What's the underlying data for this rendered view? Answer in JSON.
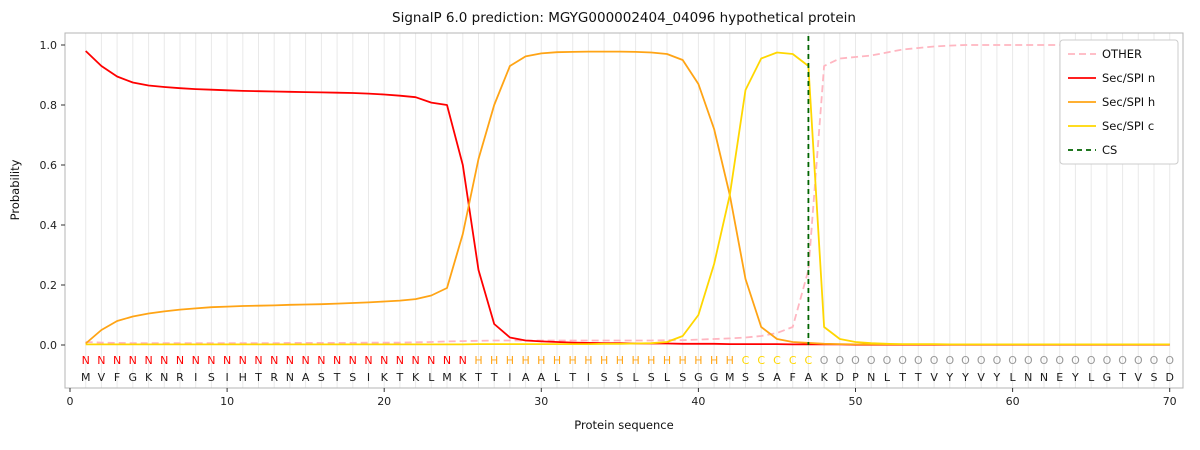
{
  "figure": {
    "title": "SignalP 6.0 prediction: MGYG000002404_04096 hypothetical protein",
    "xlabel": "Protein sequence",
    "ylabel": "Probability"
  },
  "chart_data": {
    "type": "line",
    "title": "SignalP 6.0 prediction: MGYG000002404_04096 hypothetical protein",
    "xlabel": "Protein sequence",
    "ylabel": "Probability",
    "xlim": [
      0,
      71
    ],
    "ylim": [
      0,
      1.05
    ],
    "xticks": [
      0,
      10,
      20,
      30,
      40,
      50,
      60,
      70
    ],
    "yticks": [
      0.0,
      0.2,
      0.4,
      0.6,
      0.8,
      1.0
    ],
    "grid": "vertical-per-residue",
    "legend_position": "upper-right",
    "residues": "MVFGKNRISIHTRNASTSIKTKLMKTTIAALTISSLSLSGGMSSAFAKDPNLTTVYYVYLNNEYLGTVSD",
    "region_labels": "NNNNNNNNNNNNNNNNNNNNNNNNNHHHHHHHHHHHHHHHHHCCCCCOOOOOOOOOOOOOOOOOOOOOOO",
    "region_colors": {
      "N": "#ff0000",
      "H": "#ffa415",
      "C": "#ffd700",
      "O": "#999999"
    },
    "cs_label": "CS",
    "cs_position": 47,
    "cs_color": "#006400",
    "cs_dash": "5 4",
    "style": {
      "grid_color": "#e9e9e9",
      "spine_color": "#b5b5b5"
    },
    "series": [
      {
        "name": "OTHER",
        "color": "#ffb6c1",
        "dash": "7 4",
        "values": [
          0.01,
          0.008,
          0.007,
          0.006,
          0.006,
          0.006,
          0.006,
          0.006,
          0.006,
          0.006,
          0.006,
          0.006,
          0.006,
          0.007,
          0.007,
          0.007,
          0.007,
          0.007,
          0.008,
          0.008,
          0.008,
          0.009,
          0.01,
          0.012,
          0.013,
          0.014,
          0.015,
          0.015,
          0.015,
          0.015,
          0.015,
          0.015,
          0.015,
          0.015,
          0.015,
          0.015,
          0.015,
          0.016,
          0.016,
          0.018,
          0.02,
          0.022,
          0.025,
          0.03,
          0.04,
          0.06,
          0.25,
          0.93,
          0.955,
          0.96,
          0.965,
          0.975,
          0.985,
          0.99,
          0.995,
          0.998,
          1.0,
          1.0,
          1.0,
          1.0,
          1.0,
          1.0,
          1.0,
          1.0,
          1.0,
          1.0,
          1.0,
          1.0,
          1.0,
          1.0
        ]
      },
      {
        "name": "Sec/SPI n",
        "color": "#ff0000",
        "dash": null,
        "values": [
          0.98,
          0.93,
          0.895,
          0.875,
          0.865,
          0.86,
          0.856,
          0.853,
          0.851,
          0.849,
          0.847,
          0.846,
          0.845,
          0.844,
          0.843,
          0.842,
          0.841,
          0.84,
          0.838,
          0.835,
          0.831,
          0.826,
          0.808,
          0.8,
          0.6,
          0.25,
          0.07,
          0.025,
          0.015,
          0.012,
          0.01,
          0.008,
          0.007,
          0.006,
          0.006,
          0.005,
          0.005,
          0.005,
          0.004,
          0.004,
          0.004,
          0.003,
          0.003,
          0.003,
          0.003,
          0.002,
          0.002,
          0.002,
          0.002,
          0.001,
          0.001,
          0.001,
          0.001,
          0.001,
          0.001,
          0.001,
          0.001,
          0.001,
          0.001,
          0.001,
          0.001,
          0.001,
          0.001,
          0.001,
          0.001,
          0.001,
          0.001,
          0.001,
          0.001,
          0.001
        ]
      },
      {
        "name": "Sec/SPI h",
        "color": "#ffa415",
        "dash": null,
        "values": [
          0.005,
          0.05,
          0.08,
          0.095,
          0.105,
          0.112,
          0.118,
          0.122,
          0.126,
          0.128,
          0.13,
          0.131,
          0.132,
          0.134,
          0.135,
          0.136,
          0.138,
          0.14,
          0.142,
          0.145,
          0.148,
          0.153,
          0.165,
          0.19,
          0.37,
          0.62,
          0.8,
          0.93,
          0.962,
          0.972,
          0.976,
          0.977,
          0.978,
          0.978,
          0.978,
          0.977,
          0.975,
          0.97,
          0.95,
          0.87,
          0.72,
          0.5,
          0.22,
          0.06,
          0.02,
          0.01,
          0.007,
          0.004,
          0.003,
          0.002,
          0.002,
          0.002,
          0.002,
          0.002,
          0.002,
          0.002,
          0.002,
          0.002,
          0.002,
          0.002,
          0.002,
          0.002,
          0.002,
          0.002,
          0.002,
          0.002,
          0.002,
          0.002,
          0.002,
          0.002
        ]
      },
      {
        "name": "Sec/SPI c",
        "color": "#ffd700",
        "dash": null,
        "values": [
          0.002,
          0.002,
          0.002,
          0.002,
          0.002,
          0.002,
          0.002,
          0.002,
          0.002,
          0.002,
          0.002,
          0.002,
          0.002,
          0.002,
          0.002,
          0.002,
          0.002,
          0.002,
          0.002,
          0.002,
          0.002,
          0.002,
          0.002,
          0.002,
          0.002,
          0.003,
          0.003,
          0.003,
          0.003,
          0.003,
          0.003,
          0.003,
          0.003,
          0.004,
          0.004,
          0.005,
          0.006,
          0.01,
          0.03,
          0.1,
          0.27,
          0.5,
          0.85,
          0.955,
          0.975,
          0.97,
          0.93,
          0.06,
          0.02,
          0.01,
          0.006,
          0.004,
          0.003,
          0.003,
          0.003,
          0.002,
          0.002,
          0.002,
          0.002,
          0.002,
          0.002,
          0.002,
          0.002,
          0.002,
          0.002,
          0.002,
          0.002,
          0.002,
          0.002,
          0.002
        ]
      }
    ]
  }
}
